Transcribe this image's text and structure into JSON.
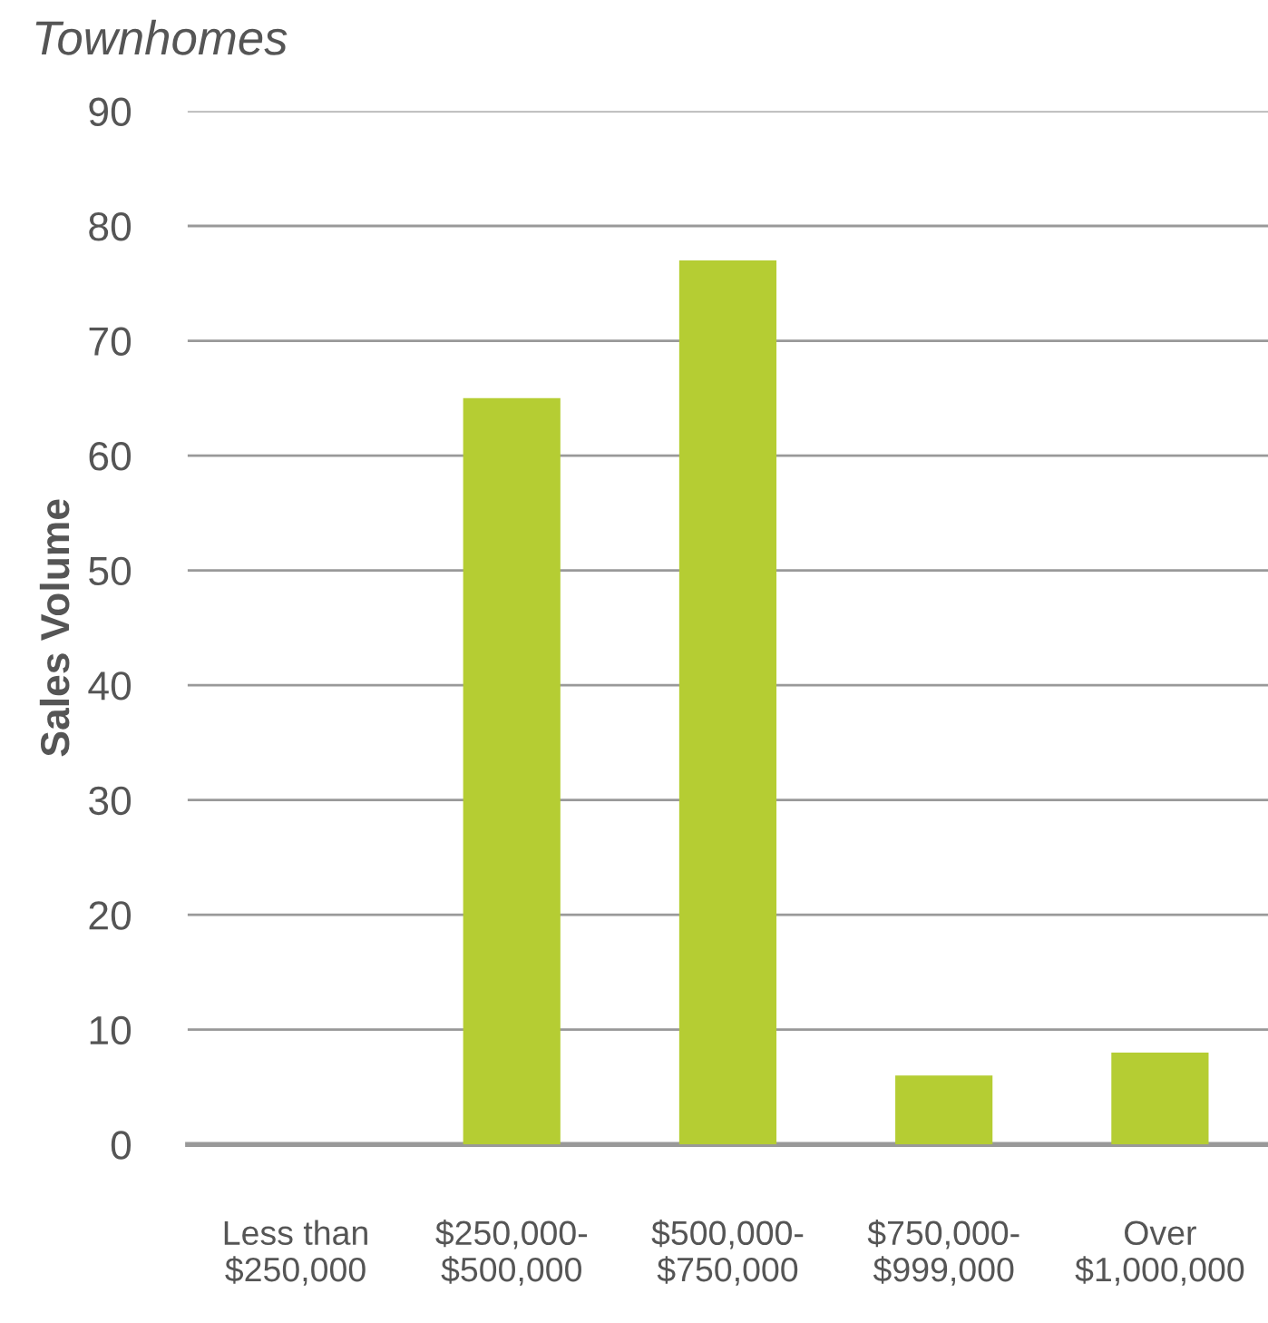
{
  "chart_data": {
    "type": "bar",
    "title": "Townhomes",
    "ylabel": "Sales Volume",
    "categories": [
      "Less than\n$250,000",
      "$250,000-\n$500,000",
      "$500,000-\n$750,000",
      "$750,000-\n$999,000",
      "Over\n$1,000,000"
    ],
    "values": [
      0,
      65,
      77,
      6,
      8
    ],
    "color": "#b5cd33",
    "ylim": [
      0,
      90
    ],
    "yticks": [
      0,
      10,
      20,
      30,
      40,
      50,
      60,
      70,
      80,
      90
    ],
    "grid": "y",
    "legend": false
  }
}
